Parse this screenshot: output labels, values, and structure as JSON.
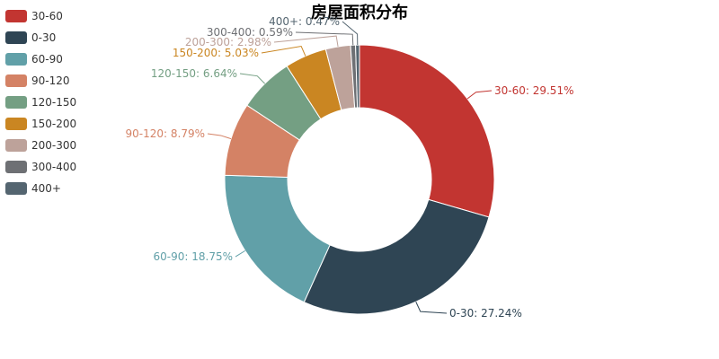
{
  "chart_data": {
    "type": "pie",
    "variant": "donut",
    "title": "房屋面积分布",
    "legend_position": "top-left",
    "categories": [
      "30-60",
      "0-30",
      "60-90",
      "90-120",
      "120-150",
      "150-200",
      "200-300",
      "300-400",
      "400+"
    ],
    "values": [
      29.51,
      27.24,
      18.75,
      8.79,
      6.64,
      5.03,
      2.98,
      0.59,
      0.47
    ],
    "unit": "%",
    "labels": [
      "30-60: 29.51%",
      "0-30: 27.24%",
      "60-90: 18.75%",
      "90-120: 8.79%",
      "120-150: 6.64%",
      "150-200: 5.03%",
      "200-300: 2.98%",
      "300-400: 0.59%",
      "400+: 0.47%"
    ],
    "colors": [
      "#c23531",
      "#2f4554",
      "#61a0a8",
      "#d48265",
      "#749f83",
      "#ca8622",
      "#bda29a",
      "#6e7074",
      "#546570"
    ]
  }
}
